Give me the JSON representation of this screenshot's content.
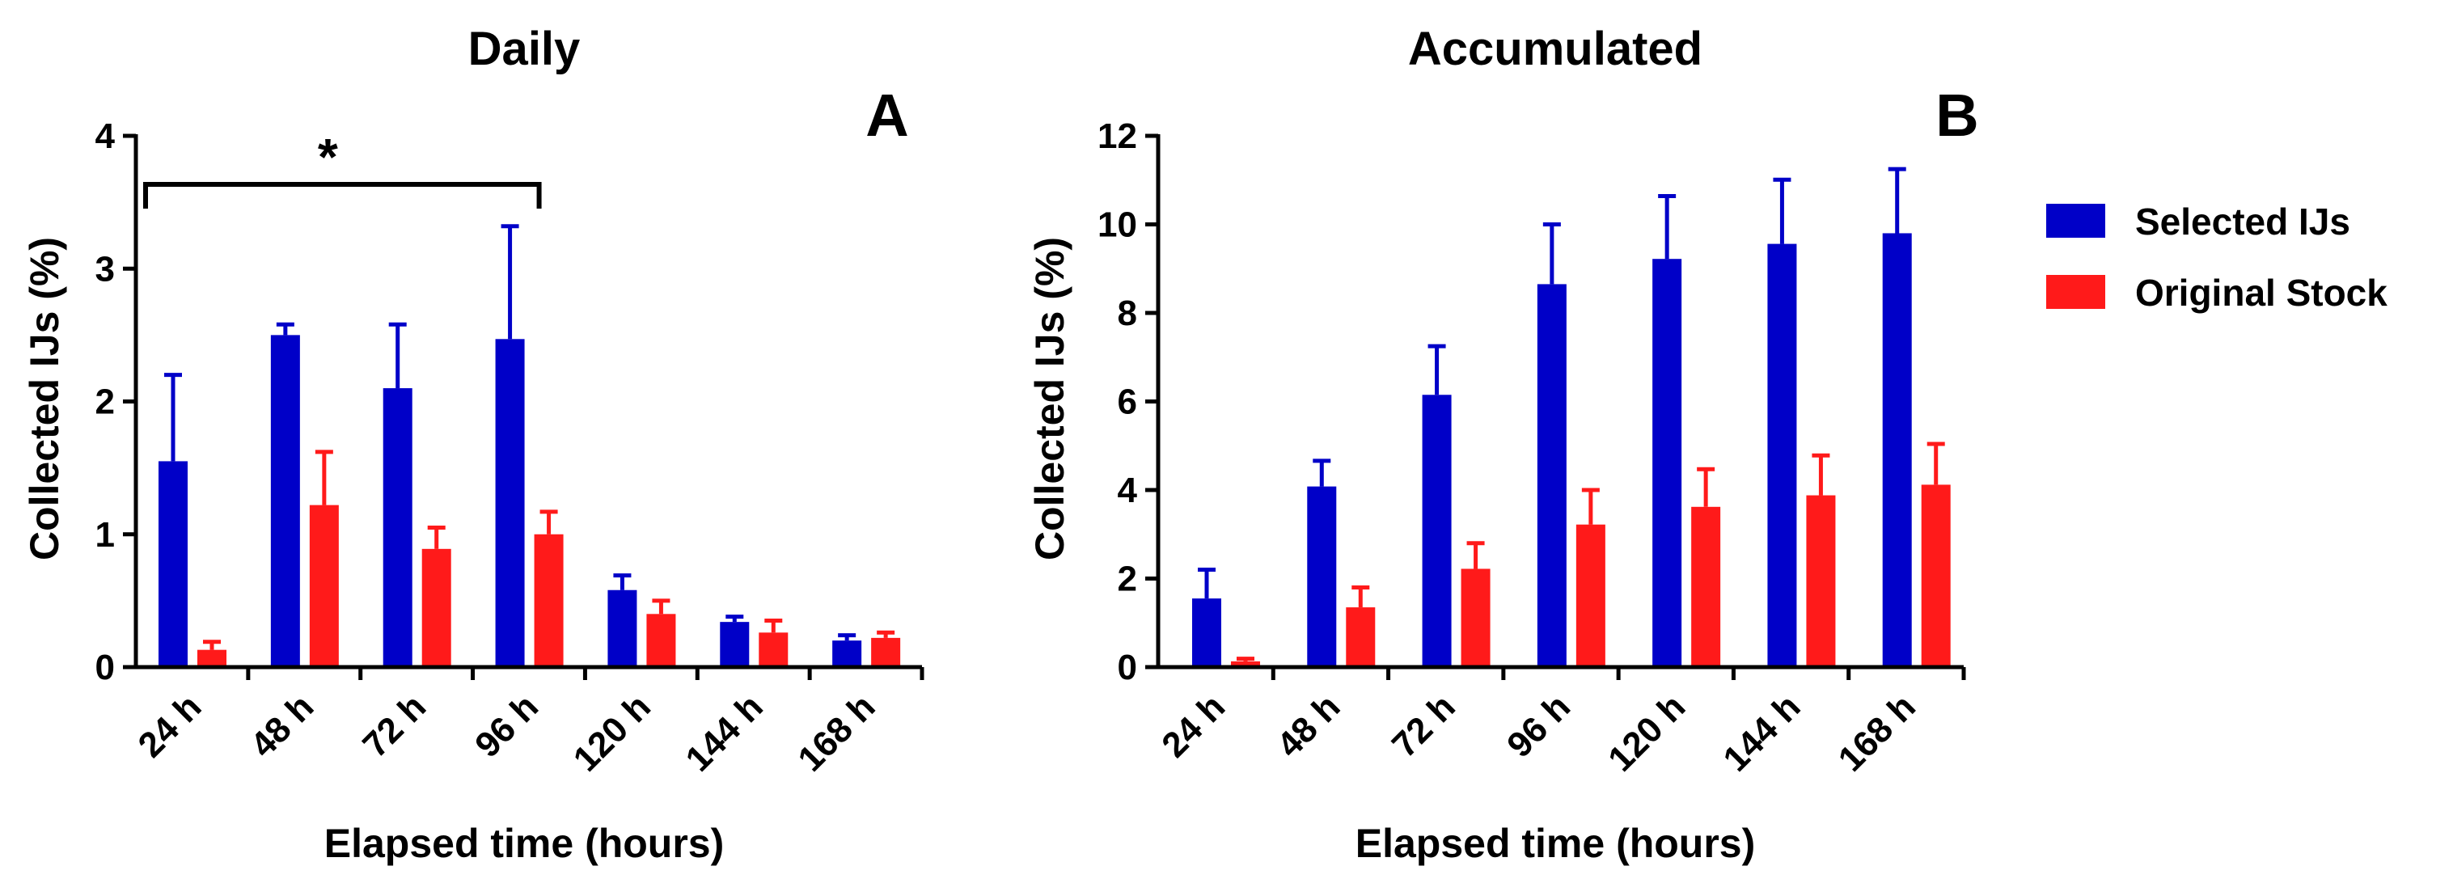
{
  "chart_data": [
    {
      "type": "bar",
      "title": "Daily",
      "panel_label": "A",
      "xlabel": "Elapsed time (hours)",
      "ylabel": "Collected IJs (%)",
      "ylim": [
        0,
        4
      ],
      "yticks": [
        "0",
        "1",
        "2",
        "3",
        "4"
      ],
      "categories": [
        "24 h",
        "48 h",
        "72 h",
        "96 h",
        "120 h",
        "144 h",
        "168 h"
      ],
      "series": [
        {
          "name": "Selected IJs",
          "values": [
            1.55,
            2.5,
            2.1,
            2.47,
            0.58,
            0.34,
            0.2
          ],
          "errors": [
            0.65,
            0.08,
            0.48,
            0.85,
            0.11,
            0.04,
            0.04
          ]
        },
        {
          "name": "Original Stock",
          "values": [
            0.13,
            1.22,
            0.89,
            1.0,
            0.4,
            0.26,
            0.22
          ],
          "errors": [
            0.06,
            0.4,
            0.16,
            0.17,
            0.1,
            0.09,
            0.04
          ]
        }
      ],
      "significance": {
        "label": "*",
        "from": "24 h",
        "to": "96 h"
      }
    },
    {
      "type": "bar",
      "title": "Accumulated",
      "panel_label": "B",
      "xlabel": "Elapsed time (hours)",
      "ylabel": "Collected IJs (%)",
      "ylim": [
        0,
        12
      ],
      "yticks": [
        "0",
        "2",
        "4",
        "6",
        "8",
        "10",
        "12"
      ],
      "categories": [
        "24 h",
        "48 h",
        "72 h",
        "96 h",
        "120 h",
        "144 h",
        "168 h"
      ],
      "series": [
        {
          "name": "Selected IJs",
          "values": [
            1.55,
            4.08,
            6.15,
            8.65,
            9.22,
            9.56,
            9.8
          ],
          "errors": [
            0.65,
            0.58,
            1.1,
            1.35,
            1.42,
            1.45,
            1.45
          ]
        },
        {
          "name": "Original Stock",
          "values": [
            0.13,
            1.35,
            2.22,
            3.22,
            3.62,
            3.88,
            4.12
          ],
          "errors": [
            0.06,
            0.45,
            0.58,
            0.78,
            0.85,
            0.9,
            0.92
          ]
        }
      ]
    }
  ],
  "legend": [
    {
      "name": "Selected IJs",
      "color": "#0000c8"
    },
    {
      "name": "Original Stock",
      "color": "#ff1a1a"
    }
  ],
  "colors": {
    "selected": "#0000c8",
    "original": "#ff1a1a",
    "axis": "#000000"
  }
}
